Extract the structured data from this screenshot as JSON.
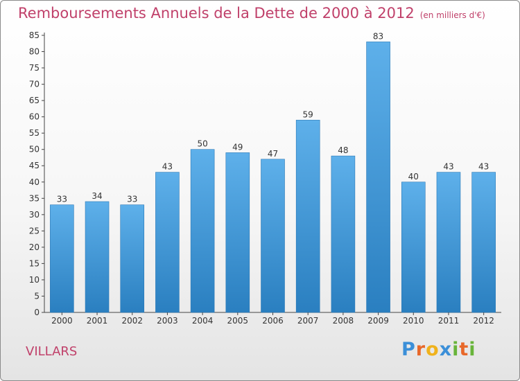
{
  "chart_data": {
    "type": "bar",
    "title": "Remboursements Annuels de la Dette de 2000 à 2012",
    "subtitle": "(en milliers d'€)",
    "categories": [
      "2000",
      "2001",
      "2002",
      "2003",
      "2004",
      "2005",
      "2006",
      "2007",
      "2008",
      "2009",
      "2010",
      "2011",
      "2012"
    ],
    "values": [
      33,
      34,
      33,
      43,
      50,
      49,
      47,
      59,
      48,
      83,
      40,
      43,
      43
    ],
    "ylim": [
      0,
      85
    ],
    "yticks": [
      0,
      5,
      10,
      15,
      20,
      25,
      30,
      35,
      40,
      45,
      50,
      55,
      60,
      65,
      70,
      75,
      80,
      85
    ],
    "grid": false,
    "legend": "none",
    "bar_color": "#4a9fdc"
  },
  "commune": "VILLARS",
  "logo": {
    "text": "Proxiti",
    "letters": [
      "P",
      "r",
      "o",
      "x",
      "i",
      "t",
      "i"
    ],
    "colors": [
      "#3b8fd8",
      "#e8682a",
      "#f0b21c",
      "#3b8fd8",
      "#68b43a",
      "#e8682a",
      "#68b43a"
    ]
  }
}
